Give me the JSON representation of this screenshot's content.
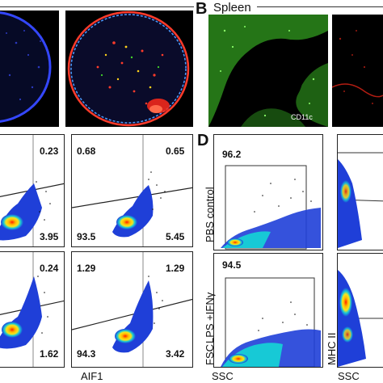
{
  "panels": {
    "b": {
      "letter": "B",
      "title": "Spleen",
      "marker_label": "CD11c"
    },
    "d": {
      "letter": "D"
    }
  },
  "facs_c": {
    "top_left": {
      "q_upper_right": "0.23"
    },
    "top_right": {
      "q_upper_left": "0.68",
      "q_upper_right": "0.65",
      "q_lower_left": "93.5",
      "q_lower_right": "5.45"
    },
    "top_left_low": {
      "q_lower_right": "3.95"
    },
    "bottom_left": {
      "q_upper_right": "0.24",
      "q_lower_right": "1.62"
    },
    "bottom_right": {
      "q_upper_left": "1.29",
      "q_upper_right": "1.29",
      "q_lower_left": "94.3",
      "q_lower_right": "3.42"
    },
    "x_axis_label": "AIF1"
  },
  "facs_d": {
    "top": {
      "gate_value": "96.2",
      "row_label": "PBS control"
    },
    "bottom": {
      "gate_value": "94.5",
      "row_label": "LPS +IFNγ"
    },
    "y_axis_label": "FSC",
    "x_axis_label": "SSC",
    "right_y_axis_label": "MHC II",
    "right_x_axis_label": "SSC"
  },
  "colors": {
    "nuclear_blue": "#2b3cff",
    "marker_red": "#ff2a1a",
    "marker_green": "#43d62a",
    "density_hot": "#ff1e00",
    "density_mid": "#f7e51c",
    "density_low": "#17c9d6",
    "density_base": "#1f3fd8"
  }
}
